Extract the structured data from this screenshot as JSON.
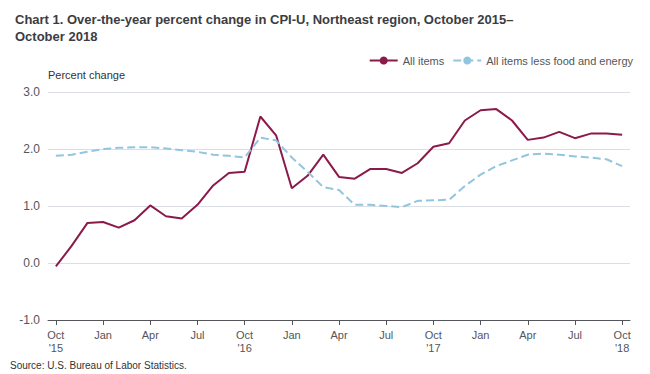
{
  "chart_data": {
    "type": "line",
    "title": "Chart 1. Over-the-year percent change in CPI-U, Northeast region, October 2015–\nOctober 2018",
    "ylabel": "Percent change",
    "source": "Source: U.S. Bureau of Labor Statistics.",
    "categories": [
      "Oct\n'15",
      null,
      null,
      "Jan",
      null,
      null,
      "Apr",
      null,
      null,
      "Jul",
      null,
      null,
      "Oct\n'16",
      null,
      null,
      "Jan",
      null,
      null,
      "Apr",
      null,
      null,
      "Jul",
      null,
      null,
      "Oct\n'17",
      null,
      null,
      "Jan",
      null,
      null,
      "Apr",
      null,
      null,
      "Jul",
      null,
      null,
      "Oct\n'18"
    ],
    "series": [
      {
        "name": "All items",
        "color": "#8B1A4A",
        "line_style": "solid",
        "values": [
          -0.06,
          0.3,
          0.7,
          0.72,
          0.62,
          0.75,
          1.01,
          0.82,
          0.78,
          1.02,
          1.36,
          1.58,
          1.6,
          2.57,
          2.24,
          1.31,
          1.53,
          1.9,
          1.51,
          1.48,
          1.65,
          1.65,
          1.58,
          1.75,
          2.04,
          2.1,
          2.5,
          2.68,
          2.7,
          2.5,
          2.16,
          2.2,
          2.3,
          2.19,
          2.27,
          2.27,
          2.25
        ]
      },
      {
        "name": "All items less food and energy",
        "color": "#92C5DE",
        "line_style": "dashed",
        "values": [
          1.88,
          1.9,
          1.95,
          2.0,
          2.02,
          2.03,
          2.03,
          2.01,
          1.98,
          1.95,
          1.9,
          1.88,
          1.85,
          2.2,
          2.15,
          1.85,
          1.6,
          1.33,
          1.28,
          1.02,
          1.02,
          1.0,
          0.98,
          1.09,
          1.1,
          1.11,
          1.35,
          1.55,
          1.7,
          1.8,
          1.9,
          1.92,
          1.9,
          1.87,
          1.85,
          1.82,
          1.7
        ]
      }
    ],
    "ylim": [
      -1.0,
      3.0
    ],
    "yticks": [
      {
        "value": -1,
        "label": "-1.0"
      },
      {
        "value": 0,
        "label": "0.0"
      },
      {
        "value": 1,
        "label": "1.0"
      },
      {
        "value": 2,
        "label": "2.0"
      },
      {
        "value": 3,
        "label": "3.0"
      }
    ],
    "grid": true,
    "legend": "upper right"
  }
}
